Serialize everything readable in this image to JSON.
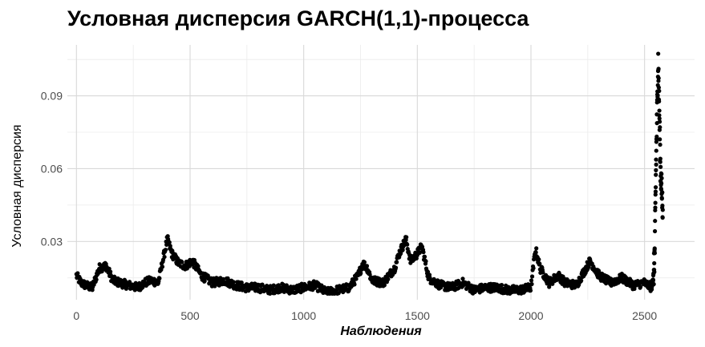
{
  "chart_data": {
    "type": "scatter",
    "title": "Условная дисперсия GARCH(1,1)-процесса",
    "xlabel": "Наблюдения",
    "ylabel": "Условная дисперсия",
    "xlim": [
      -40,
      2720
    ],
    "ylim": [
      0.006,
      0.111
    ],
    "x_ticks": [
      0,
      500,
      1000,
      1500,
      2000,
      2500
    ],
    "x_tick_labels": [
      "0",
      "500",
      "1000",
      "1500",
      "2000",
      "2500"
    ],
    "y_ticks": [
      0.03,
      0.06,
      0.09
    ],
    "y_tick_labels": [
      "0.03",
      "0.06",
      "0.09"
    ],
    "grid": true,
    "point_color": "#000000",
    "gridline_color": "#d9d9d9",
    "minor_gridline_color": "#ebebeb",
    "series": [
      {
        "name": "Условная дисперсия",
        "keypoints": {
          "x": [
            0,
            20,
            40,
            70,
            100,
            130,
            160,
            190,
            230,
            270,
            300,
            330,
            360,
            400,
            420,
            450,
            480,
            510,
            550,
            600,
            650,
            700,
            750,
            800,
            850,
            900,
            950,
            1000,
            1050,
            1100,
            1150,
            1200,
            1240,
            1260,
            1280,
            1300,
            1350,
            1400,
            1420,
            1450,
            1470,
            1500,
            1520,
            1550,
            1600,
            1650,
            1700,
            1750,
            1800,
            1850,
            1900,
            1950,
            2000,
            2020,
            2040,
            2080,
            2120,
            2150,
            2200,
            2230,
            2260,
            2300,
            2350,
            2400,
            2450,
            2500,
            2530,
            2540,
            2545,
            2550,
            2560,
            2570,
            2580
          ],
          "y": [
            0.016,
            0.013,
            0.012,
            0.011,
            0.019,
            0.02,
            0.014,
            0.013,
            0.012,
            0.011,
            0.013,
            0.014,
            0.013,
            0.031,
            0.025,
            0.021,
            0.02,
            0.022,
            0.016,
            0.013,
            0.014,
            0.012,
            0.011,
            0.011,
            0.01,
            0.011,
            0.01,
            0.011,
            0.012,
            0.009,
            0.01,
            0.011,
            0.016,
            0.021,
            0.019,
            0.014,
            0.013,
            0.019,
            0.025,
            0.031,
            0.022,
            0.025,
            0.028,
            0.015,
            0.012,
            0.011,
            0.013,
            0.01,
            0.011,
            0.011,
            0.01,
            0.01,
            0.011,
            0.027,
            0.019,
            0.013,
            0.016,
            0.013,
            0.012,
            0.017,
            0.022,
            0.016,
            0.013,
            0.015,
            0.012,
            0.013,
            0.011,
            0.016,
            0.027,
            0.06,
            0.105,
            0.06,
            0.043
          ]
        }
      }
    ]
  }
}
